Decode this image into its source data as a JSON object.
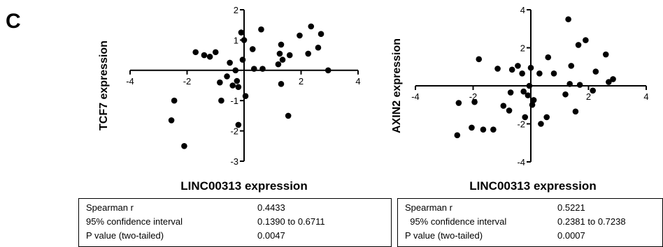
{
  "panel_letter": "C",
  "chart_data": [
    {
      "type": "scatter",
      "title": "",
      "xlabel": "LINC00313 expression",
      "ylabel": "TCF7 expression",
      "xlim": [
        -4,
        4
      ],
      "ylim": [
        -3,
        2
      ],
      "x_ticks": [
        "-4",
        "-2",
        "2",
        "4"
      ],
      "y_ticks": [
        "2",
        "1",
        "-1",
        "-2",
        "-3"
      ],
      "x_tick_values": [
        -4,
        -2,
        2,
        4
      ],
      "y_tick_values": [
        2,
        1,
        -1,
        -2,
        -3
      ],
      "grid": false,
      "points": [
        [
          -2.55,
          -1.65
        ],
        [
          -2.45,
          -1.0
        ],
        [
          -2.1,
          -2.5
        ],
        [
          -1.7,
          0.6
        ],
        [
          -1.4,
          0.5
        ],
        [
          -1.2,
          0.45
        ],
        [
          -1.0,
          0.6
        ],
        [
          -0.85,
          -0.4
        ],
        [
          -0.8,
          -1.0
        ],
        [
          -0.6,
          -0.2
        ],
        [
          -0.5,
          0.25
        ],
        [
          -0.4,
          -0.5
        ],
        [
          -0.3,
          0.0
        ],
        [
          -0.25,
          -0.35
        ],
        [
          -0.2,
          -1.8
        ],
        [
          -0.2,
          -0.55
        ],
        [
          -0.1,
          1.25
        ],
        [
          -0.05,
          0.35
        ],
        [
          0.0,
          1.0
        ],
        [
          0.05,
          -0.85
        ],
        [
          0.3,
          0.7
        ],
        [
          0.35,
          0.05
        ],
        [
          0.6,
          1.35
        ],
        [
          0.65,
          0.05
        ],
        [
          1.2,
          0.2
        ],
        [
          1.25,
          0.55
        ],
        [
          1.3,
          0.85
        ],
        [
          1.3,
          -0.45
        ],
        [
          1.35,
          0.35
        ],
        [
          1.55,
          -1.5
        ],
        [
          1.6,
          0.5
        ],
        [
          1.95,
          1.15
        ],
        [
          2.25,
          0.55
        ],
        [
          2.35,
          1.45
        ],
        [
          2.6,
          0.75
        ],
        [
          2.7,
          1.2
        ],
        [
          2.95,
          0.0
        ]
      ]
    },
    {
      "type": "scatter",
      "title": "",
      "xlabel": "LINC00313 expression",
      "ylabel": "AXIN2 expression",
      "xlim": [
        -4,
        4
      ],
      "ylim": [
        -4,
        4
      ],
      "x_ticks": [
        "-4",
        "-2",
        "2",
        "4"
      ],
      "y_ticks": [
        "4",
        "2",
        "-2",
        "-4"
      ],
      "x_tick_values": [
        -4,
        -2,
        2,
        4
      ],
      "y_tick_values": [
        4,
        2,
        -2,
        -4
      ],
      "grid": false,
      "points": [
        [
          -2.55,
          -2.6
        ],
        [
          -2.5,
          -0.9
        ],
        [
          -2.05,
          -2.2
        ],
        [
          -1.95,
          -0.85
        ],
        [
          -1.8,
          1.4
        ],
        [
          -1.65,
          -2.3
        ],
        [
          -1.3,
          -2.3
        ],
        [
          -1.15,
          0.9
        ],
        [
          -0.95,
          -1.05
        ],
        [
          -0.75,
          -1.3
        ],
        [
          -0.7,
          -0.35
        ],
        [
          -0.65,
          0.85
        ],
        [
          -0.45,
          1.05
        ],
        [
          -0.3,
          0.65
        ],
        [
          -0.25,
          -0.3
        ],
        [
          -0.2,
          -1.65
        ],
        [
          -0.1,
          -0.5
        ],
        [
          -0.05,
          0.0
        ],
        [
          0.0,
          0.95
        ],
        [
          0.05,
          -1.0
        ],
        [
          0.1,
          -0.75
        ],
        [
          0.3,
          0.65
        ],
        [
          0.35,
          -2.0
        ],
        [
          0.55,
          -1.65
        ],
        [
          0.6,
          1.5
        ],
        [
          0.8,
          0.65
        ],
        [
          1.2,
          -0.45
        ],
        [
          1.3,
          3.5
        ],
        [
          1.35,
          0.1
        ],
        [
          1.4,
          1.05
        ],
        [
          1.55,
          -1.35
        ],
        [
          1.65,
          2.15
        ],
        [
          1.7,
          0.05
        ],
        [
          1.9,
          2.4
        ],
        [
          2.15,
          -0.25
        ],
        [
          2.25,
          0.75
        ],
        [
          2.6,
          1.65
        ],
        [
          2.7,
          0.2
        ],
        [
          2.85,
          0.35
        ]
      ]
    }
  ],
  "stats": [
    {
      "rows": [
        {
          "label": "Spearman r",
          "value": "0.4433"
        },
        {
          "label": "95% confidence interval",
          "value": "0.1390 to 0.6711"
        },
        {
          "label": "P value (two-tailed)",
          "value": "0.0047"
        }
      ]
    },
    {
      "rows": [
        {
          "label": "Spearman r",
          "value": "0.5221"
        },
        {
          "label": "  95% confidence interval",
          "value": "0.2381 to 0.7238"
        },
        {
          "label": "P value (two-tailed)",
          "value": "0.0007"
        }
      ]
    }
  ]
}
